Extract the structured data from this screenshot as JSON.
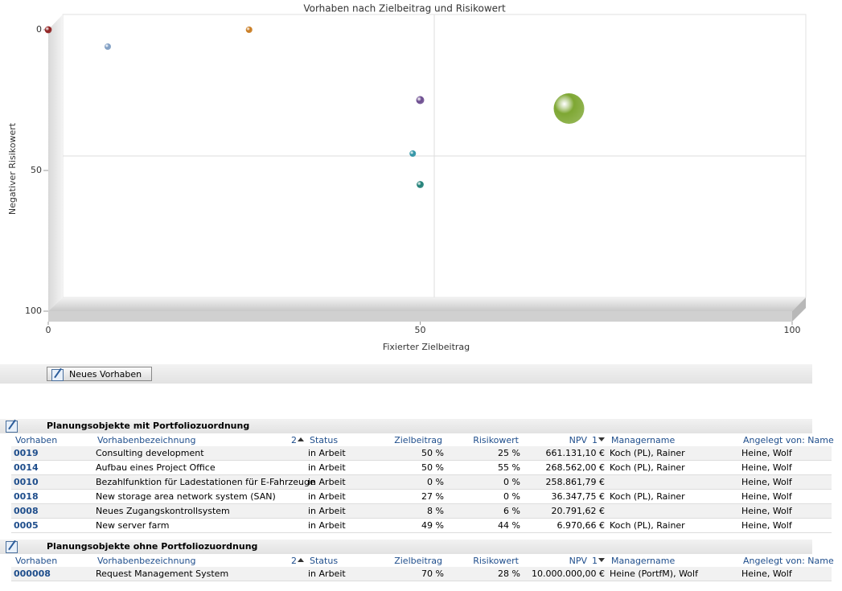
{
  "chart_data": {
    "type": "bubble",
    "title": "Vorhaben nach Zielbeitrag und Risikowert",
    "x_label": "Fixierter Zielbeitrag",
    "y_label": "Negativer Risikowert",
    "x": [
      50,
      50,
      0,
      27,
      8,
      49,
      70
    ],
    "values": [
      25,
      55,
      0,
      0,
      6,
      44,
      28
    ],
    "sizes": [
      661131.1,
      268562.0,
      258861.79,
      36347.75,
      20791.62,
      6970.66,
      10000000
    ],
    "colors": [
      "#6a4a8e",
      "#1b7d74",
      "#8e1d1d",
      "#c8791c",
      "#7d9cc2",
      "#2b91a3",
      "#7ea733"
    ],
    "xlim": [
      0,
      100
    ],
    "xticks": [
      0,
      50,
      100
    ],
    "ylim": [
      0,
      100
    ],
    "yticks": [
      0,
      50,
      100
    ],
    "y_inverted": true,
    "grid": true
  },
  "toolbar": {
    "button": "Neues Vorhaben"
  },
  "sections": [
    {
      "title": "Planungsobjekte mit Portfoliozuordnung",
      "columns": [
        {
          "text": "Vorhaben"
        },
        {
          "text": "Vorhabenbezeichnung",
          "sort": "2",
          "sort_dir": "asc"
        },
        {
          "text": "Status"
        },
        {
          "text": "Zielbeitrag"
        },
        {
          "text": "Risikowert"
        },
        {
          "text": "NPV",
          "sort": "1",
          "sort_dir": "desc"
        },
        {
          "text": "Managername"
        },
        {
          "text": "Angelegt von: Name"
        }
      ],
      "rows": [
        [
          "0019",
          "Consulting development",
          "in Arbeit",
          "50 %",
          "25 %",
          "661.131,10 €",
          "Koch (PL), Rainer",
          "Heine, Wolf"
        ],
        [
          "0014",
          "Aufbau eines Project Office",
          "in Arbeit",
          "50 %",
          "55 %",
          "268.562,00 €",
          "Koch (PL), Rainer",
          "Heine, Wolf"
        ],
        [
          "0010",
          "Bezahlfunktion für Ladestationen für E-Fahrzeuge",
          "in Arbeit",
          "0 %",
          "0 %",
          "258.861,79 €",
          null,
          "Heine, Wolf"
        ],
        [
          "0018",
          "New storage area network system (SAN)",
          "in Arbeit",
          "27 %",
          "0 %",
          "36.347,75 €",
          "Koch (PL), Rainer",
          "Heine, Wolf"
        ],
        [
          "0008",
          "Neues Zugangskontrollsystem",
          "in Arbeit",
          "8 %",
          "6 %",
          "20.791,62 €",
          null,
          "Heine, Wolf"
        ],
        [
          "0005",
          "New server farm",
          "in Arbeit",
          "49 %",
          "44 %",
          "6.970,66 €",
          "Koch (PL), Rainer",
          "Heine, Wolf"
        ]
      ]
    },
    {
      "title": "Planungsobjekte ohne Portfoliozuordnung",
      "columns": [
        {
          "text": "Vorhaben"
        },
        {
          "text": "Vorhabenbezeichnung",
          "sort": "2",
          "sort_dir": "asc"
        },
        {
          "text": "Status"
        },
        {
          "text": "Zielbeitrag"
        },
        {
          "text": "Risikowert"
        },
        {
          "text": "NPV",
          "sort": "1",
          "sort_dir": "desc"
        },
        {
          "text": "Managername"
        },
        {
          "text": "Angelegt von: Name"
        }
      ],
      "rows": [
        [
          "000008",
          "Request Management System",
          "in Arbeit",
          "70 %",
          "28 %",
          "10.000.000,00 €",
          "Heine (PortfM), Wolf",
          "Heine, Wolf"
        ]
      ]
    }
  ]
}
